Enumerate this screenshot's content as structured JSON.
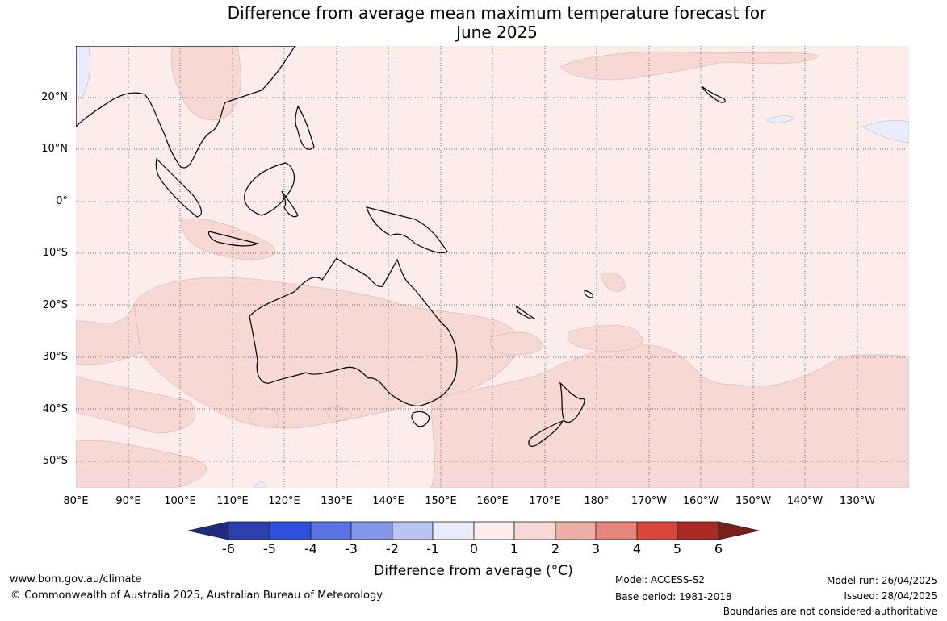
{
  "title_line1": "Difference from average mean maximum temperature forecast for",
  "title_line2": "June 2025",
  "lat_labels": [
    "20°N",
    "10°N",
    "0°",
    "10°S",
    "20°S",
    "30°S",
    "40°S",
    "50°S"
  ],
  "lon_labels": [
    "80°E",
    "90°E",
    "100°E",
    "110°E",
    "120°E",
    "130°E",
    "140°E",
    "150°E",
    "160°E",
    "170°E",
    "180°",
    "170°W",
    "160°W",
    "150°W",
    "140°W",
    "130°W"
  ],
  "colorbar": {
    "ticks": [
      "-6",
      "-5",
      "-4",
      "-3",
      "-2",
      "-1",
      "0",
      "1",
      "2",
      "3",
      "4",
      "5",
      "6"
    ],
    "colors": [
      "#1f2a80",
      "#2b3fae",
      "#2f4fdc",
      "#5a72e2",
      "#8596e8",
      "#bcc5f2",
      "#e8ecfb",
      "#fcecea",
      "#f6d8d6",
      "#eeaea8",
      "#e6857c",
      "#d9473b",
      "#a92a24",
      "#7a1e1a"
    ],
    "title": "Difference from average (°C)"
  },
  "footer": {
    "url": "www.bom.gov.au/climate",
    "copyright": "© Commonwealth of Australia 2025, Australian Bureau of Meteorology",
    "model": "Model: ACCESS-S2",
    "base_period": "Base period: 1981-2018",
    "model_run": "Model run: 26/04/2025",
    "issued": "Issued: 28/04/2025",
    "boundaries": "Boundaries are not considered authoritative"
  }
}
